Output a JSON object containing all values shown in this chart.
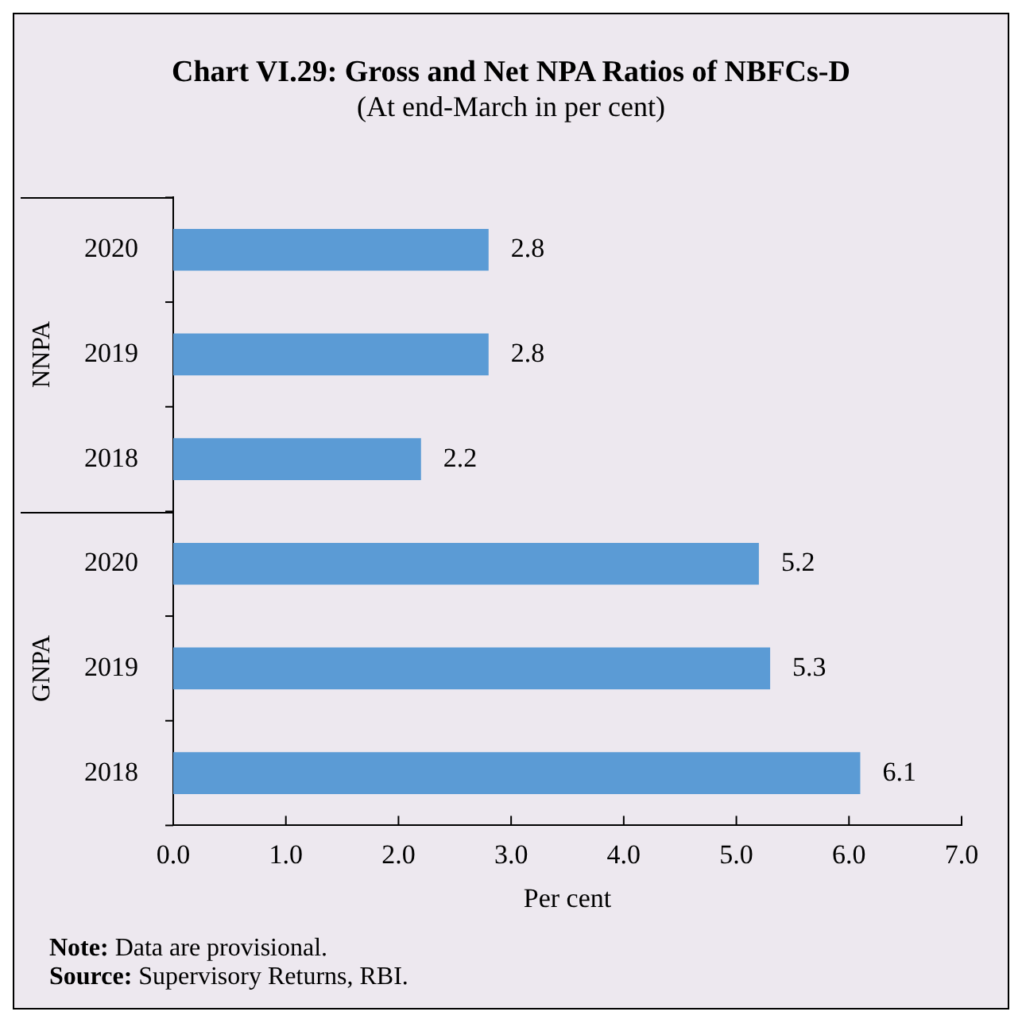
{
  "chart_data": {
    "type": "bar",
    "orientation": "horizontal",
    "title": "Chart VI.29: Gross and Net NPA Ratios of NBFCs-D",
    "subtitle": "(At end-March in per cent)",
    "xlabel": "Per cent",
    "categories": [
      "2020",
      "2019",
      "2018",
      "2020",
      "2019",
      "2018"
    ],
    "values": [
      2.8,
      2.8,
      2.2,
      5.2,
      5.3,
      6.1
    ],
    "color": "#5b9bd5",
    "xlim": [
      0,
      7
    ],
    "xticks": [
      {
        "value": 0,
        "label": "0.0"
      },
      {
        "value": 1,
        "label": "1.0"
      },
      {
        "value": 2,
        "label": "2.0"
      },
      {
        "value": 3,
        "label": "3.0"
      },
      {
        "value": 4,
        "label": "4.0"
      },
      {
        "value": 5,
        "label": "5.0"
      },
      {
        "value": 6,
        "label": "6.0"
      },
      {
        "value": 7,
        "label": "7.0"
      }
    ],
    "grid": false,
    "legend": false,
    "data_labels": true,
    "annotations": [
      "NNPA",
      "GNPA",
      "Note: Data are provisional.",
      "Source: Supervisory Returns, RBI."
    ]
  }
}
